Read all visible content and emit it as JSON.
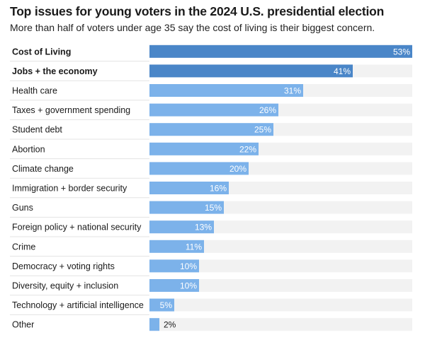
{
  "title": "Top issues for young voters in the 2024 U.S. presidential election",
  "subtitle": "More than half of voters under age 35 say the cost of living is their biggest concern.",
  "colors": {
    "highlight": "#4a86c8",
    "bar": "#7cb2ea",
    "track": "#f2f2f2",
    "divider": "#e3e3e3",
    "value_inside": "#ffffff",
    "value_outside": "#1a1a1a"
  },
  "chart_data": {
    "type": "bar",
    "orientation": "horizontal",
    "title": "Top issues for young voters in the 2024 U.S. presidential election",
    "subtitle": "More than half of voters under age 35 say the cost of living is their biggest concern.",
    "xlim": [
      0,
      53
    ],
    "categories": [
      "Cost of Living",
      "Jobs + the economy",
      "Health care",
      "Taxes + government spending",
      "Student debt",
      "Abortion",
      "Climate change",
      "Immigration + border security",
      "Guns",
      "Foreign policy + national security",
      "Crime",
      "Democracy + voting rights",
      "Diversity, equity + inclusion",
      "Technology + artificial intelligence",
      "Other"
    ],
    "values": [
      53,
      41,
      31,
      26,
      25,
      22,
      20,
      16,
      15,
      13,
      11,
      10,
      10,
      5,
      2
    ],
    "value_labels": [
      "53%",
      "41%",
      "31%",
      "26%",
      "25%",
      "22%",
      "20%",
      "16%",
      "15%",
      "13%",
      "11%",
      "10%",
      "10%",
      "5%",
      "2%"
    ],
    "bold_categories": [
      "Cost of Living",
      "Jobs + the economy"
    ]
  }
}
